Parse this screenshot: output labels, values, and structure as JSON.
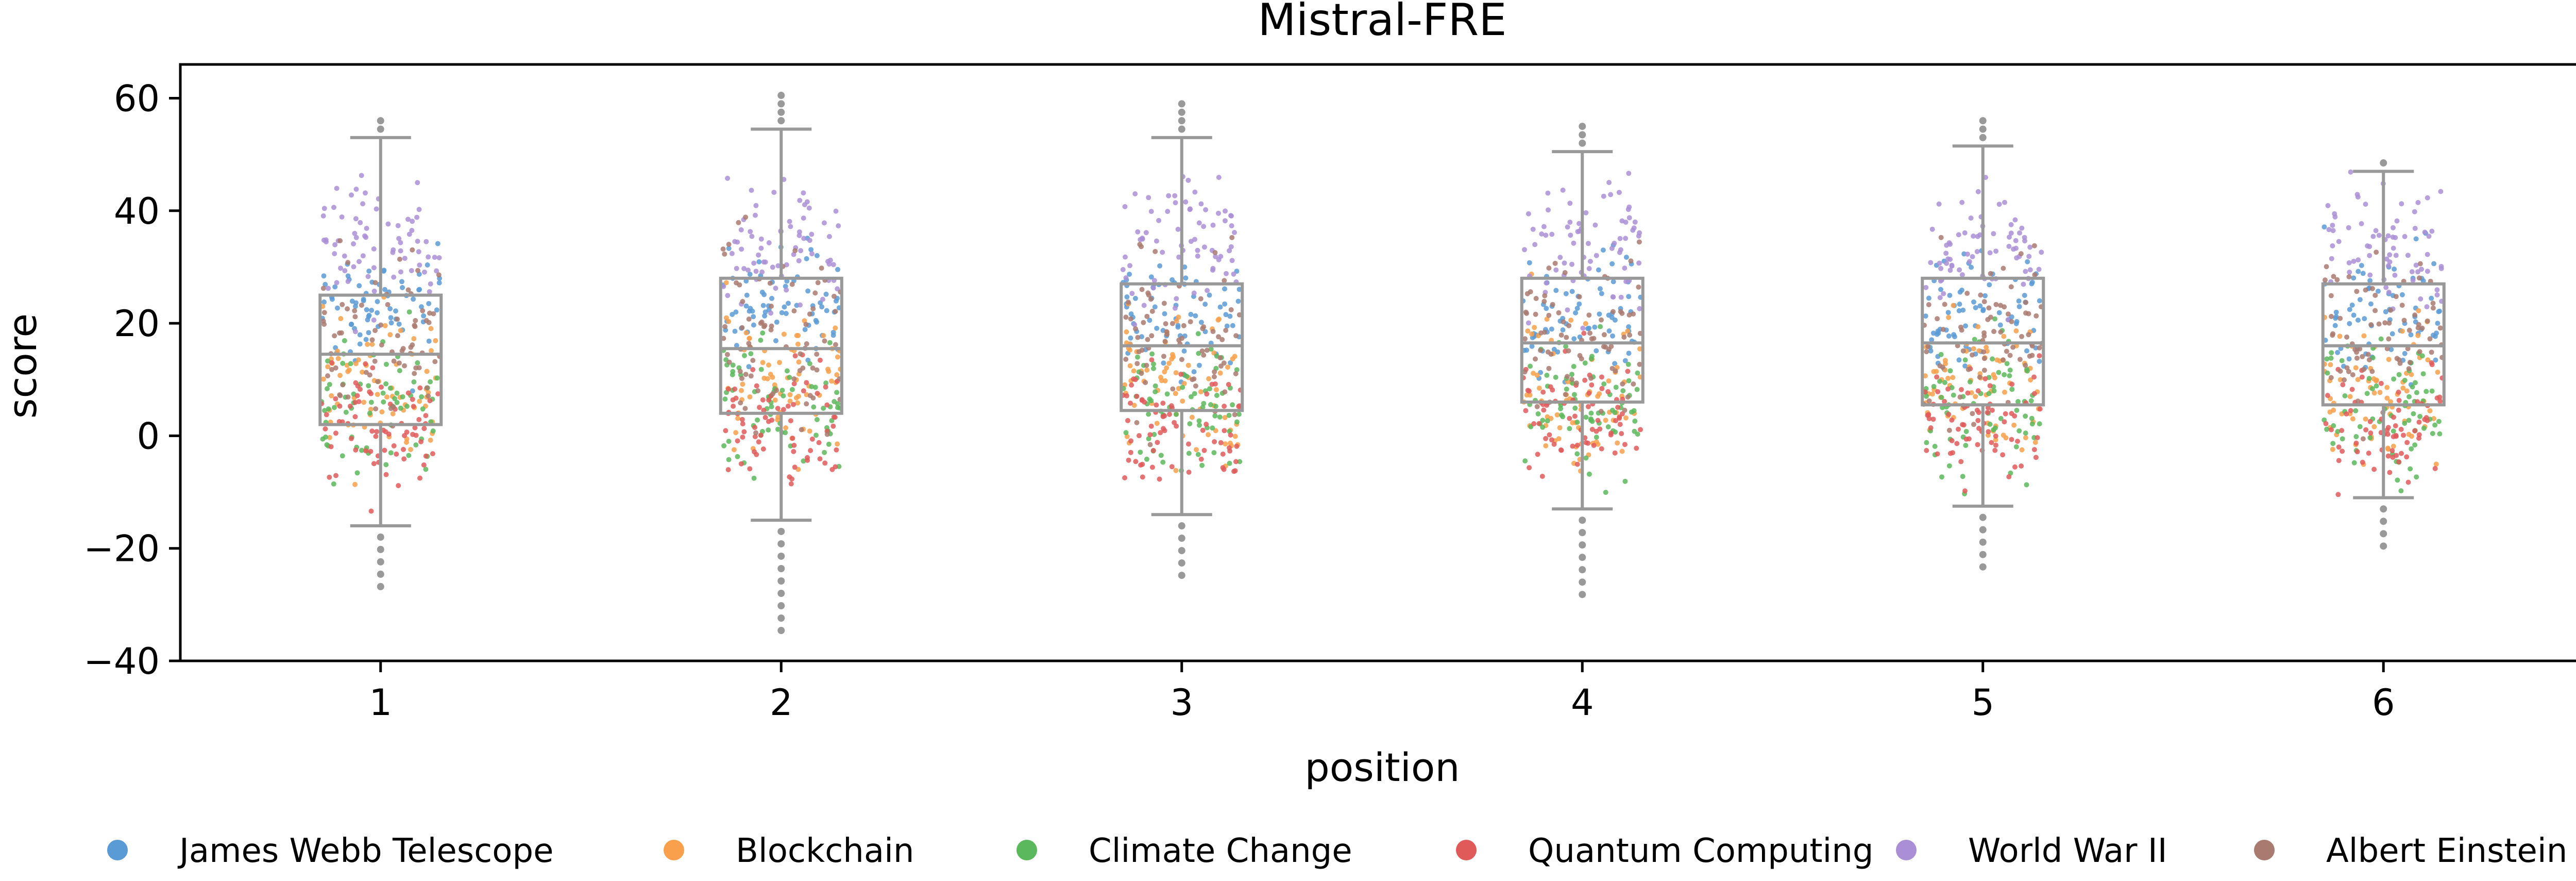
{
  "chart_data": {
    "type": "box",
    "title": "Mistral-FRE",
    "xlabel": "position",
    "ylabel": "score",
    "categories": [
      "1",
      "2",
      "3",
      "4",
      "5",
      "6"
    ],
    "ylim": [
      -40,
      66
    ],
    "yticks": [
      -40,
      -20,
      0,
      20,
      40,
      60
    ],
    "ytick_labels": [
      "−40",
      "−20",
      "0",
      "20",
      "40",
      "60"
    ],
    "grid": false,
    "legend_position": "bottom",
    "boxes": [
      {
        "position": "1",
        "whisker_low": -16,
        "q1": 2,
        "median": 14.5,
        "q3": 25,
        "whisker_high": 53,
        "y_min": -28,
        "y_max": 57
      },
      {
        "position": "2",
        "whisker_low": -15,
        "q1": 4,
        "median": 15.5,
        "q3": 28,
        "whisker_high": 54.5,
        "y_min": -36,
        "y_max": 61
      },
      {
        "position": "3",
        "whisker_low": -14,
        "q1": 4.5,
        "median": 16,
        "q3": 27,
        "whisker_high": 53,
        "y_min": -25,
        "y_max": 59
      },
      {
        "position": "4",
        "whisker_low": -13,
        "q1": 6,
        "median": 16.5,
        "q3": 28,
        "whisker_high": 50.5,
        "y_min": -30,
        "y_max": 56
      },
      {
        "position": "5",
        "whisker_low": -12.5,
        "q1": 5.5,
        "median": 16.5,
        "q3": 28,
        "whisker_high": 51.5,
        "y_min": -24,
        "y_max": 56
      },
      {
        "position": "6",
        "whisker_low": -11,
        "q1": 5.5,
        "median": 16,
        "q3": 27,
        "whisker_high": 47,
        "y_min": -21,
        "y_max": 49
      }
    ],
    "series": [
      {
        "name": "James Webb Telescope",
        "color": "#5a9bd5",
        "center": 22,
        "spread": 9
      },
      {
        "name": "Blockchain",
        "color": "#f8a04b",
        "center": 8,
        "spread": 12
      },
      {
        "name": "Climate Change",
        "color": "#5cb85c",
        "center": 6,
        "spread": 11
      },
      {
        "name": "Quantum Computing",
        "color": "#e05a5a",
        "center": 2,
        "spread": 9
      },
      {
        "name": "World War II",
        "color": "#ab8fd6",
        "center": 34,
        "spread": 10
      },
      {
        "name": "Albert Einstein",
        "color": "#a97a70",
        "center": 18,
        "spread": 12
      }
    ],
    "box_color": "#999999"
  }
}
